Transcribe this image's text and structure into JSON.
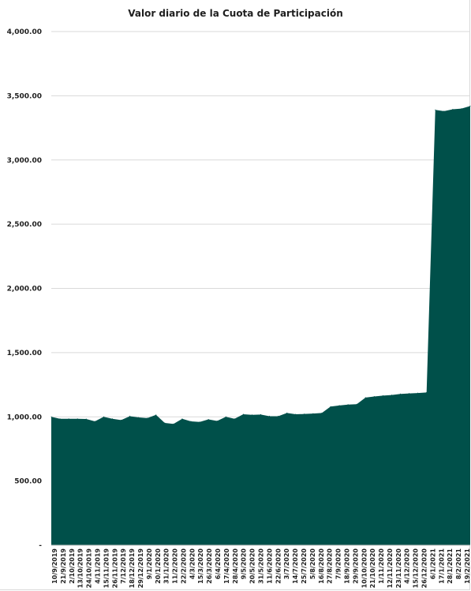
{
  "chart_data": {
    "type": "area",
    "title": "Valor diario de la Cuota de Participación",
    "xlabel": "",
    "ylabel": "",
    "ylim": [
      0,
      4000
    ],
    "grid": true,
    "legend": "none",
    "color": "#00504a",
    "y_ticks": [
      "-",
      "500.00",
      "1,000.00",
      "1,500.00",
      "2,000.00",
      "2,500.00",
      "3,000.00",
      "3,500.00",
      "4,000.00"
    ],
    "y_tick_values": [
      0,
      500,
      1000,
      1500,
      2000,
      2500,
      3000,
      3500,
      4000
    ],
    "x_tick_labels": [
      "10/9/2019",
      "21/9/2019",
      "2/10/2019",
      "13/10/2019",
      "24/10/2019",
      "4/11/2019",
      "15/11/2019",
      "26/11/2019",
      "7/12/2019",
      "18/12/2019",
      "29/12/2019",
      "9/1/2020",
      "20/1/2020",
      "31/1/2020",
      "11/2/2020",
      "22/2/2020",
      "4/3/2020",
      "15/3/2020",
      "26/3/2020",
      "6/4/2020",
      "17/4/2020",
      "28/4/2020",
      "9/5/2020",
      "20/5/2020",
      "31/5/2020",
      "11/6/2020",
      "22/6/2020",
      "3/7/2020",
      "14/7/2020",
      "25/7/2020",
      "5/8/2020",
      "16/8/2020",
      "27/8/2020",
      "7/9/2020",
      "18/9/2020",
      "29/9/2020",
      "10/10/2020",
      "21/10/2020",
      "1/11/2020",
      "12/11/2020",
      "23/11/2020",
      "4/12/2020",
      "15/12/2020",
      "26/12/2020",
      "6/1/2021",
      "17/1/2021",
      "28/1/2021",
      "8/2/2021",
      "19/2/2021"
    ],
    "x": [
      "10/9/2019",
      "21/9/2019",
      "2/10/2019",
      "13/10/2019",
      "24/10/2019",
      "4/11/2019",
      "15/11/2019",
      "26/11/2019",
      "7/12/2019",
      "18/12/2019",
      "29/12/2019",
      "9/1/2020",
      "20/1/2020",
      "31/1/2020",
      "11/2/2020",
      "22/2/2020",
      "4/3/2020",
      "15/3/2020",
      "26/3/2020",
      "6/4/2020",
      "17/4/2020",
      "28/4/2020",
      "9/5/2020",
      "20/5/2020",
      "31/5/2020",
      "11/6/2020",
      "22/6/2020",
      "3/7/2020",
      "14/7/2020",
      "25/7/2020",
      "5/8/2020",
      "16/8/2020",
      "27/8/2020",
      "7/9/2020",
      "18/9/2020",
      "29/9/2020",
      "10/10/2020",
      "21/10/2020",
      "1/11/2020",
      "12/11/2020",
      "23/11/2020",
      "4/12/2020",
      "15/12/2020",
      "26/12/2020",
      "6/1/2021",
      "17/1/2021",
      "28/1/2021",
      "8/2/2021",
      "19/2/2021"
    ],
    "values": [
      1000,
      985,
      985,
      985,
      983,
      965,
      1000,
      985,
      975,
      1005,
      995,
      990,
      1015,
      952,
      945,
      985,
      965,
      960,
      980,
      968,
      1000,
      985,
      1020,
      1015,
      1018,
      1005,
      1005,
      1030,
      1020,
      1022,
      1025,
      1030,
      1080,
      1088,
      1095,
      1098,
      1150,
      1158,
      1165,
      1170,
      1178,
      1182,
      1185,
      1190,
      3390,
      3380,
      3395,
      3400,
      3420
    ]
  }
}
